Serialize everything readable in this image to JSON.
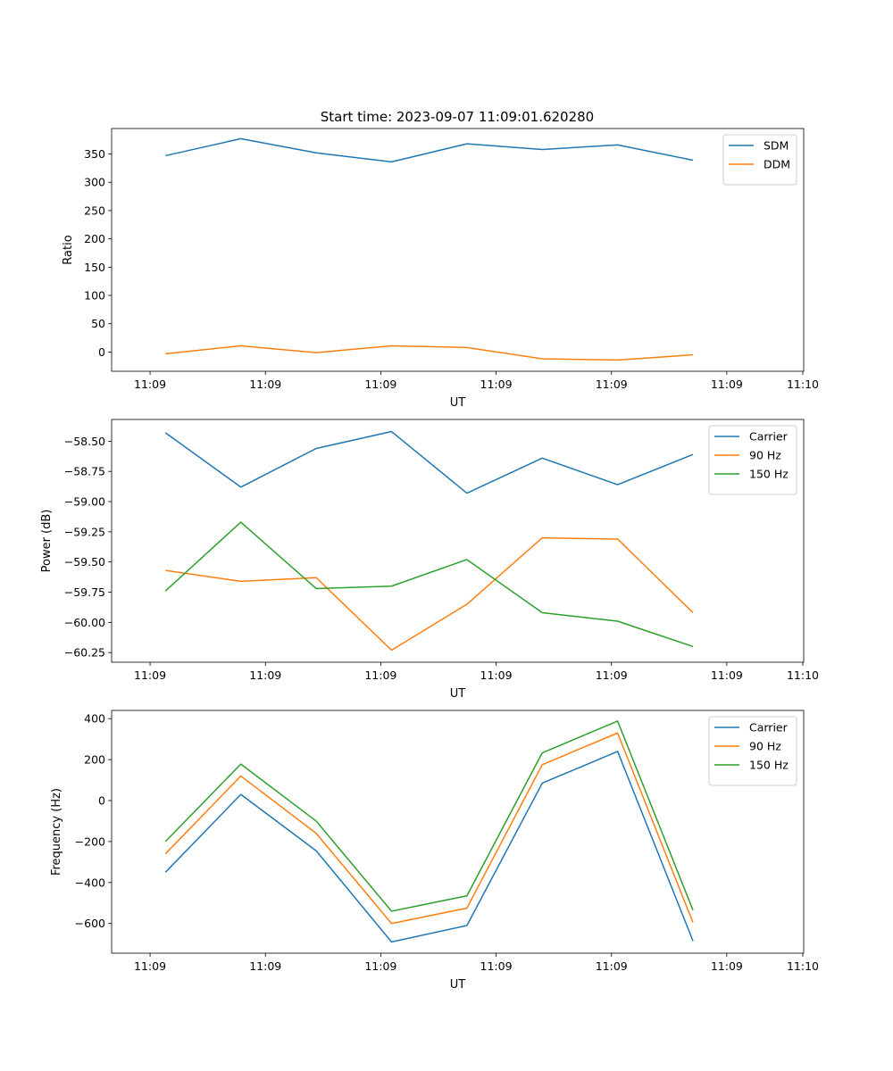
{
  "figure_title": "Start time: 2023-09-07 11:09:01.620280",
  "colors": {
    "blue": "#1f77b4",
    "orange": "#ff7f0e",
    "green": "#2ca02c",
    "axis": "#000000",
    "legend_border": "#cccccc"
  },
  "chart_data": [
    {
      "type": "line",
      "title": "Start time: 2023-09-07 11:09:01.620280",
      "xlabel": "UT",
      "ylabel": "Ratio",
      "xlim": [
        -0.5,
        8.5
      ],
      "ylim": [
        -34,
        395
      ],
      "x_ticks": [
        0,
        1.5,
        3,
        4.5,
        6,
        7.5
      ],
      "x_tick_labels": [
        "11:09",
        "11:09",
        "11:09",
        "11:09",
        "11:09",
        "11:09"
      ],
      "x_end_label": "11:10",
      "y_ticks": [
        0,
        50,
        100,
        150,
        200,
        250,
        300,
        350
      ],
      "y_tick_labels": [
        "0",
        "50",
        "100",
        "150",
        "200",
        "250",
        "300",
        "350"
      ],
      "legend": "top-right",
      "series": [
        {
          "name": "SDM",
          "color": "#1f77b4",
          "x": [
            0.2,
            1.18,
            2.16,
            3.14,
            4.12,
            5.1,
            6.08,
            7.06
          ],
          "values": [
            347,
            377,
            352,
            336,
            368,
            358,
            366,
            339
          ]
        },
        {
          "name": "DDM",
          "color": "#ff7f0e",
          "x": [
            0.2,
            1.18,
            2.16,
            3.14,
            4.12,
            5.1,
            6.08,
            7.06
          ],
          "values": [
            -3,
            11,
            -1,
            11,
            8,
            -12,
            -14,
            -5
          ]
        }
      ]
    },
    {
      "type": "line",
      "title": "",
      "xlabel": "UT",
      "ylabel": "Power (dB)",
      "xlim": [
        -0.5,
        8.5
      ],
      "ylim": [
        -60.33,
        -58.32
      ],
      "x_ticks": [
        0,
        1.5,
        3,
        4.5,
        6,
        7.5
      ],
      "x_tick_labels": [
        "11:09",
        "11:09",
        "11:09",
        "11:09",
        "11:09",
        "11:09"
      ],
      "x_end_label": "11:10",
      "y_ticks": [
        -60.25,
        -60.0,
        -59.75,
        -59.5,
        -59.25,
        -59.0,
        -58.75,
        -58.5
      ],
      "y_tick_labels": [
        "−60.25",
        "−60.00",
        "−59.75",
        "−59.50",
        "−59.25",
        "−59.00",
        "−58.75",
        "−58.50"
      ],
      "legend": "top-right",
      "series": [
        {
          "name": "Carrier",
          "color": "#1f77b4",
          "x": [
            0.2,
            1.18,
            2.16,
            3.14,
            4.12,
            5.1,
            6.08,
            7.06
          ],
          "values": [
            -58.43,
            -58.88,
            -58.56,
            -58.42,
            -58.93,
            -58.64,
            -58.86,
            -58.61
          ]
        },
        {
          "name": "90 Hz",
          "color": "#ff7f0e",
          "x": [
            0.2,
            1.18,
            2.16,
            3.14,
            4.12,
            5.1,
            6.08,
            7.06
          ],
          "values": [
            -59.57,
            -59.66,
            -59.63,
            -60.23,
            -59.85,
            -59.3,
            -59.31,
            -59.92
          ]
        },
        {
          "name": "150 Hz",
          "color": "#2ca02c",
          "x": [
            0.2,
            1.18,
            2.16,
            3.14,
            4.12,
            5.1,
            6.08,
            7.06
          ],
          "values": [
            -59.74,
            -59.17,
            -59.72,
            -59.7,
            -59.48,
            -59.92,
            -59.99,
            -60.2
          ]
        }
      ]
    },
    {
      "type": "line",
      "title": "",
      "xlabel": "UT",
      "ylabel": "Frequency (Hz)",
      "xlim": [
        -0.5,
        8.5
      ],
      "ylim": [
        -745,
        440
      ],
      "x_ticks": [
        0,
        1.5,
        3,
        4.5,
        6,
        7.5
      ],
      "x_tick_labels": [
        "11:09",
        "11:09",
        "11:09",
        "11:09",
        "11:09",
        "11:09"
      ],
      "x_end_label": "11:10",
      "y_ticks": [
        -600,
        -400,
        -200,
        0,
        200,
        400
      ],
      "y_tick_labels": [
        "−600",
        "−400",
        "−200",
        "0",
        "200",
        "400"
      ],
      "legend": "top-right",
      "series": [
        {
          "name": "Carrier",
          "color": "#1f77b4",
          "x": [
            0.2,
            1.18,
            2.16,
            3.14,
            4.12,
            5.1,
            6.08,
            7.06
          ],
          "values": [
            -350,
            30,
            -245,
            -690,
            -610,
            85,
            240,
            -685
          ]
        },
        {
          "name": "90 Hz",
          "color": "#ff7f0e",
          "x": [
            0.2,
            1.18,
            2.16,
            3.14,
            4.12,
            5.1,
            6.08,
            7.06
          ],
          "values": [
            -260,
            120,
            -160,
            -600,
            -525,
            175,
            330,
            -595
          ]
        },
        {
          "name": "150 Hz",
          "color": "#2ca02c",
          "x": [
            0.2,
            1.18,
            2.16,
            3.14,
            4.12,
            5.1,
            6.08,
            7.06
          ],
          "values": [
            -200,
            178,
            -100,
            -540,
            -465,
            233,
            388,
            -535
          ]
        }
      ]
    }
  ]
}
